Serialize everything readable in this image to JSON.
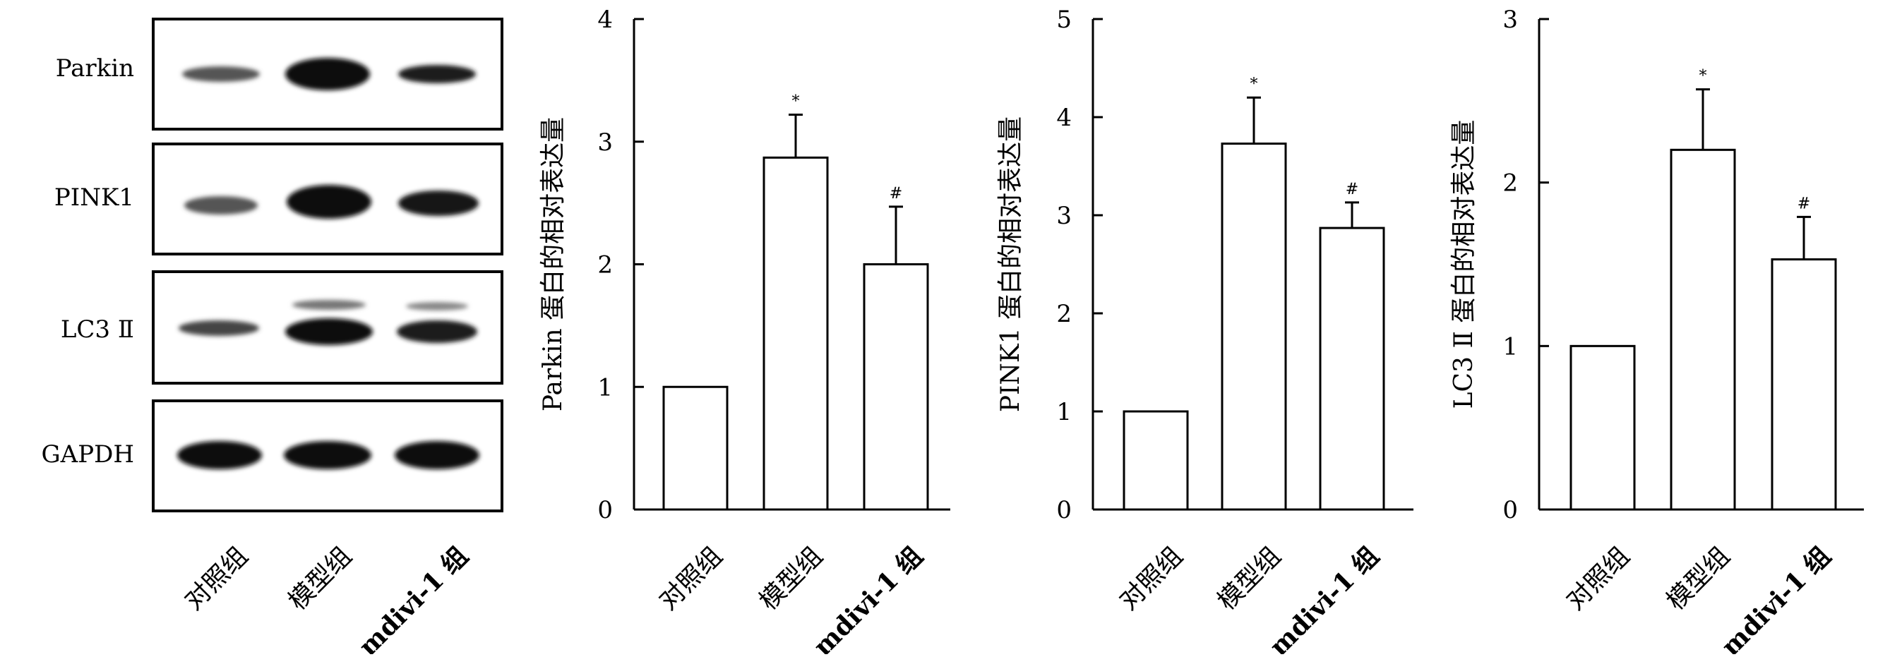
{
  "blot": {
    "rows": [
      "Parkin",
      "PINK1",
      "LC3 Ⅱ",
      "GAPDH"
    ],
    "groups": [
      "对照组",
      "模型组",
      "mdivi-1 组"
    ]
  },
  "chart_data": [
    {
      "type": "bar",
      "categories": [
        "对照组",
        "模型组",
        "mdivi-1 组"
      ],
      "values": [
        1.0,
        2.87,
        2.0
      ],
      "errors": [
        0,
        0.35,
        0.47
      ],
      "significance": [
        "",
        "*",
        "#"
      ],
      "ylabel": "Parkin 蛋白的相对表达量",
      "ylim": [
        0,
        4
      ],
      "yticks": [
        "0",
        "1",
        "2",
        "3",
        "4"
      ]
    },
    {
      "type": "bar",
      "categories": [
        "对照组",
        "模型组",
        "mdivi-1 组"
      ],
      "values": [
        1.0,
        3.73,
        2.87
      ],
      "errors": [
        0,
        0.47,
        0.26
      ],
      "significance": [
        "",
        "*",
        "#"
      ],
      "ylabel": "PINK1 蛋白的相对表达量",
      "ylim": [
        0,
        5
      ],
      "yticks": [
        "0",
        "1",
        "2",
        "3",
        "4",
        "5"
      ]
    },
    {
      "type": "bar",
      "categories": [
        "对照组",
        "模型组",
        "mdivi-1 组"
      ],
      "values": [
        1.0,
        2.2,
        1.53
      ],
      "errors": [
        0,
        0.37,
        0.26
      ],
      "significance": [
        "",
        "*",
        "#"
      ],
      "ylabel": "LC3 Ⅱ 蛋白的相对表达量",
      "ylim": [
        0,
        3
      ],
      "yticks": [
        "0",
        "1",
        "2",
        "3"
      ]
    }
  ]
}
